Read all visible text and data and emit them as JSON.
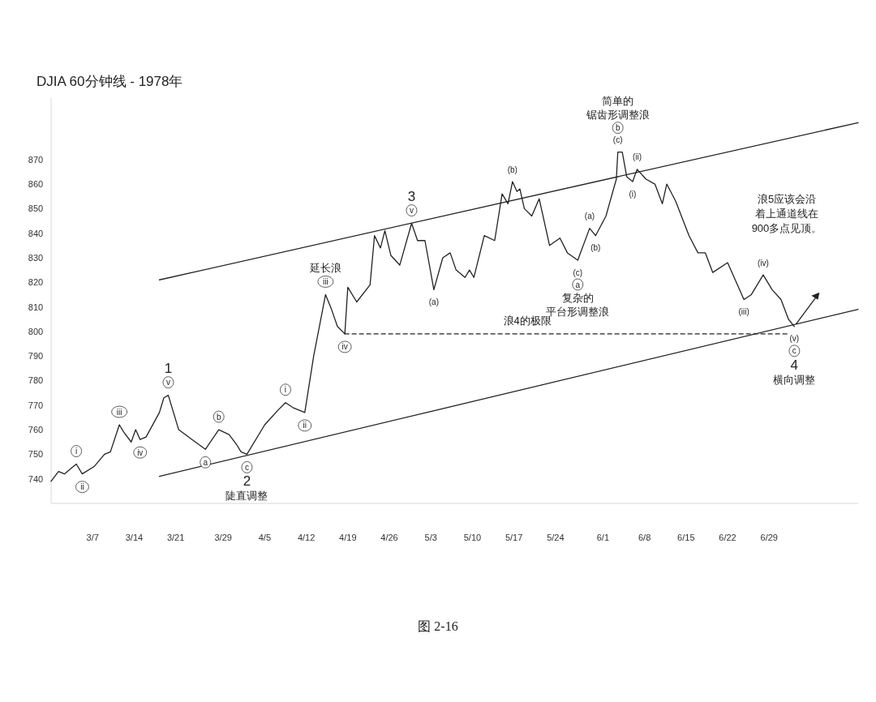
{
  "chart_data": {
    "type": "line",
    "title": "DJIA 60分钟线 - 1978年",
    "xlim": [
      "1978-02-28",
      "1978-07-14"
    ],
    "ylim": [
      730,
      895
    ],
    "yticks": [
      740,
      750,
      760,
      770,
      780,
      790,
      800,
      810,
      820,
      830,
      840,
      850,
      860,
      870
    ],
    "xticks": [
      {
        "value": "1978-03-07",
        "label": "3/7"
      },
      {
        "value": "1978-03-14",
        "label": "3/14"
      },
      {
        "value": "1978-03-21",
        "label": "3/21"
      },
      {
        "value": "1978-03-29",
        "label": "3/29"
      },
      {
        "value": "1978-04-05",
        "label": "4/5"
      },
      {
        "value": "1978-04-12",
        "label": "4/12"
      },
      {
        "value": "1978-04-19",
        "label": "4/19"
      },
      {
        "value": "1978-04-26",
        "label": "4/26"
      },
      {
        "value": "1978-05-03",
        "label": "5/3"
      },
      {
        "value": "1978-05-10",
        "label": "5/10"
      },
      {
        "value": "1978-05-17",
        "label": "5/17"
      },
      {
        "value": "1978-05-24",
        "label": "5/24"
      },
      {
        "value": "1978-06-01",
        "label": "6/1"
      },
      {
        "value": "1978-06-08",
        "label": "6/8"
      },
      {
        "value": "1978-06-15",
        "label": "6/15"
      },
      {
        "value": "1978-06-22",
        "label": "6/22"
      },
      {
        "value": "1978-06-29",
        "label": "6/29"
      }
    ],
    "series": [
      {
        "color": "#222222",
        "x": [
          "1978-02-28T00:00",
          "1978-03-01T06:00",
          "1978-03-02T06:00",
          "1978-03-03T06:00",
          "1978-03-04T06:00",
          "1978-03-05T06:00",
          "1978-03-07T06:00",
          "1978-03-09T00:00",
          "1978-03-10T00:00",
          "1978-03-11T12:00",
          "1978-03-12T06:00",
          "1978-03-13T12:00",
          "1978-03-14T06:00",
          "1978-03-15T00:00",
          "1978-03-16T00:00",
          "1978-03-18T06:00",
          "1978-03-19T00:00",
          "1978-03-19T18:00",
          "1978-03-21T12:00",
          "1978-03-23T18:00",
          "1978-03-26T00:00",
          "1978-03-28T06:00",
          "1978-03-30T00:00",
          "1978-03-31T06:00",
          "1978-04-01T00:00",
          "1978-04-02T00:00",
          "1978-04-05T00:00",
          "1978-04-07T06:00",
          "1978-04-08T12:00",
          "1978-04-09T18:00",
          "1978-04-11T18:00",
          "1978-04-13T06:00",
          "1978-04-15T06:00",
          "1978-04-16T06:00",
          "1978-04-17T06:00",
          "1978-04-18T12:00",
          "1978-04-19T00:00",
          "1978-04-20T12:00",
          "1978-04-22T18:00",
          "1978-04-23T12:00",
          "1978-04-24T12:00",
          "1978-04-25T06:00",
          "1978-04-26T06:00",
          "1978-04-27T18:00",
          "1978-04-29T18:00",
          "1978-04-30T18:00",
          "1978-05-02T00:00",
          "1978-05-03T12:00",
          "1978-05-05T00:00",
          "1978-05-06T06:00",
          "1978-05-07T06:00",
          "1978-05-08T18:00",
          "1978-05-09T12:00",
          "1978-05-10T06:00",
          "1978-05-12T00:00",
          "1978-05-13T18:00",
          "1978-05-15T00:00",
          "1978-05-16T00:00",
          "1978-05-16T18:00",
          "1978-05-17T12:00",
          "1978-05-18T00:00",
          "1978-05-18T18:00",
          "1978-05-20T00:00",
          "1978-05-21T06:00",
          "1978-05-23T00:00",
          "1978-05-24T18:00",
          "1978-05-26T00:00",
          "1978-05-27T18:00",
          "1978-05-29T18:00",
          "1978-05-30T18:00",
          "1978-06-01T12:00",
          "1978-06-03T06:00",
          "1978-06-03T12:00",
          "1978-06-04T06:00",
          "1978-06-05T00:00",
          "1978-06-06T00:00",
          "1978-06-06T18:00",
          "1978-06-08T06:00",
          "1978-06-09T18:00",
          "1978-06-11T00:00",
          "1978-06-11T18:00",
          "1978-06-13T06:00",
          "1978-06-15T12:00",
          "1978-06-17T00:00",
          "1978-06-18T06:00",
          "1978-06-19T12:00",
          "1978-06-22T00:00",
          "1978-06-24T18:00",
          "1978-06-26T00:00",
          "1978-06-28T00:00",
          "1978-06-29T12:00",
          "1978-07-01T00:00",
          "1978-07-02T06:00",
          "1978-07-03T06:00"
        ],
        "values": [
          739,
          743,
          742,
          744,
          746,
          742,
          745,
          750,
          751,
          762,
          759,
          755,
          760,
          756,
          757,
          767,
          773,
          774,
          760,
          756,
          752,
          760,
          758,
          754,
          751,
          750,
          762,
          768,
          771,
          769,
          767,
          790,
          815,
          809,
          802,
          799,
          818,
          812,
          819,
          839,
          834,
          841,
          831,
          827,
          844,
          837,
          837,
          817,
          830,
          832,
          825,
          822,
          825,
          822,
          839,
          837,
          856,
          852,
          861,
          857,
          858,
          850,
          847,
          854,
          835,
          838,
          832,
          829,
          842,
          839,
          847,
          862,
          873,
          873,
          863,
          861,
          866,
          862,
          860,
          852,
          860,
          853,
          839,
          832,
          832,
          824,
          828,
          813,
          815,
          823,
          817,
          813,
          805,
          802
        ]
      },
      {
        "color": "#222222",
        "x": [
          "1978-03-18T06:00",
          "1978-07-14T00:00"
        ],
        "values": [
          821,
          885
        ]
      },
      {
        "color": "#222222",
        "x": [
          "1978-03-18T06:00",
          "1978-07-14T00:00"
        ],
        "values": [
          741,
          809
        ]
      },
      {
        "color": "#222222",
        "line_style": "dashed",
        "x": [
          "1978-04-18T12:00",
          "1978-07-02T12:00"
        ],
        "values": [
          799,
          799
        ]
      }
    ],
    "annotations": [
      "浪5应该会沿",
      "着上通道线在",
      "900多点见顶。",
      "图 2-16",
      {
        "text": "i",
        "x": "1978-03-04T06:00",
        "y": 746
      },
      {
        "text": "ii",
        "x": "1978-03-05T06:00",
        "y": 742
      },
      {
        "text": "iii",
        "x": "1978-03-11T12:00",
        "y": 762
      },
      {
        "text": "iv",
        "x": "1978-03-15T00:00",
        "y": 756
      },
      {
        "text": "v",
        "x": "1978-03-19T18:00",
        "y": 774
      },
      {
        "text": "1",
        "x": "1978-03-19T18:00",
        "y": 774
      },
      {
        "text": "a",
        "x": "1978-03-26T00:00",
        "y": 752
      },
      {
        "text": "b",
        "x": "1978-03-28T06:00",
        "y": 760
      },
      {
        "text": "c",
        "x": "1978-04-02T00:00",
        "y": 750
      },
      {
        "text": "2",
        "x": "1978-04-02T00:00",
        "y": 750
      },
      "陡直调整",
      {
        "text": "i",
        "x": "1978-04-08T12:00",
        "y": 771
      },
      {
        "text": "ii",
        "x": "1978-04-11T18:00",
        "y": 767
      },
      {
        "text": "iii",
        "x": "1978-04-15T06:00",
        "y": 815
      },
      {
        "text": "延长浪",
        "x": "1978-04-15T06:00",
        "y": 815
      },
      {
        "text": "iv",
        "x": "1978-04-18T12:00",
        "y": 799
      },
      {
        "text": "v",
        "x": "1978-04-29T18:00",
        "y": 844
      },
      {
        "text": "3",
        "x": "1978-04-29T18:00",
        "y": 844
      },
      {
        "text": "(a)",
        "x": "1978-05-03T12:00",
        "y": 817
      },
      {
        "text": "(b)",
        "x": "1978-05-16T18:00",
        "y": 861
      },
      {
        "text": "(c)",
        "x": "1978-05-27T18:00",
        "y": 829
      },
      {
        "text": "a",
        "x": "1978-05-27T18:00",
        "y": 829
      },
      {
        "text": "复杂的",
        "x": "1978-05-27T18:00",
        "y": 829
      },
      "平台形调整浪",
      {
        "text": "(a)",
        "x": "1978-05-29T18:00",
        "y": 842
      },
      {
        "text": "(b)",
        "x": "1978-05-30T18:00",
        "y": 839
      },
      {
        "text": "(c)",
        "x": "1978-06-03T12:00",
        "y": 873
      },
      {
        "text": "b",
        "x": "1978-06-03T12:00",
        "y": 873
      },
      {
        "text": "锯齿形调整浪",
        "x": "1978-06-03T12:00",
        "y": 873
      },
      "简单的",
      {
        "text": "(i)",
        "x": "1978-06-06T00:00",
        "y": 861
      },
      {
        "text": "(ii)",
        "x": "1978-06-06T18:00",
        "y": 866
      },
      {
        "text": "(iii)",
        "x": "1978-06-24T18:00",
        "y": 813
      },
      {
        "text": "(iv)",
        "x": "1978-06-28T00:00",
        "y": 823
      },
      {
        "text": "(v)",
        "x": "1978-07-03T06:00",
        "y": 802
      },
      {
        "text": "c",
        "x": "1978-07-03T06:00",
        "y": 802
      },
      {
        "text": "4",
        "x": "1978-07-03T06:00",
        "y": 802
      },
      "横向调整",
      {
        "text": "浪4的极限",
        "x": "1978-05-19T06:00",
        "y": 799
      }
    ]
  }
}
